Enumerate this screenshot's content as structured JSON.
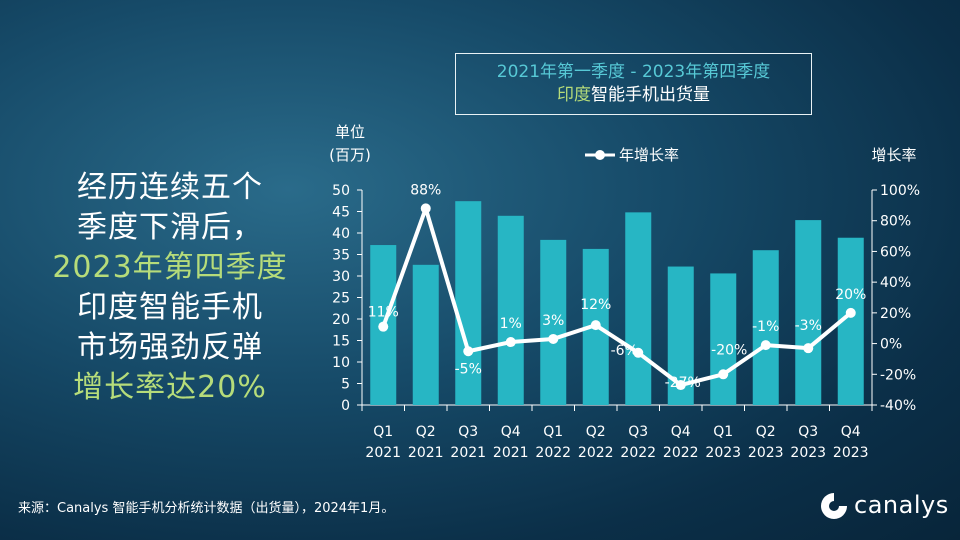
{
  "headline": {
    "line1": "经历连续五个",
    "line2": "季度下滑后，",
    "line3": "2023年第四季度",
    "line4": "印度智能手机",
    "line5": "市场强劲反弹",
    "line6": "增长率达20%"
  },
  "title_box": {
    "line1": "2021年第一季度 - 2023年第四季度",
    "line2_highlight": "印度",
    "line2_rest": "智能手机出货量"
  },
  "source_note": "来源：Canalys 智能手机分析统计数据（出货量），2024年1月。",
  "logo": {
    "brand": "canalys",
    "icon": "canalys-logo-icon"
  },
  "colors": {
    "bar": "#27b6c4",
    "line": "#ffffff",
    "accent_green": "#b6dc7a",
    "title_cyan": "#57c9d6"
  },
  "chart_data": {
    "type": "bar",
    "combo": "bar+line",
    "left_axis_label_line1": "单位",
    "left_axis_label_line2": "(百万)",
    "right_axis_label": "增长率",
    "legend": "年增长率",
    "categories": [
      "Q1 2021",
      "Q2 2021",
      "Q3 2021",
      "Q4 2021",
      "Q1 2022",
      "Q2 2022",
      "Q3 2022",
      "Q4 2022",
      "Q1 2023",
      "Q2 2023",
      "Q3 2023",
      "Q4 2023"
    ],
    "category_quarters": [
      "Q1",
      "Q2",
      "Q3",
      "Q4",
      "Q1",
      "Q2",
      "Q3",
      "Q4",
      "Q1",
      "Q2",
      "Q3",
      "Q4"
    ],
    "category_years": [
      "2021",
      "2021",
      "2021",
      "2021",
      "2022",
      "2022",
      "2022",
      "2022",
      "2023",
      "2023",
      "2023",
      "2023"
    ],
    "y_left": {
      "min": 0,
      "max": 50,
      "ticks": [
        "0",
        "5",
        "10",
        "15",
        "20",
        "25",
        "30",
        "35",
        "40",
        "45",
        "50"
      ]
    },
    "y_right": {
      "min": -40,
      "max": 100,
      "ticks": [
        "-40%",
        "-20%",
        "0%",
        "20%",
        "40%",
        "60%",
        "80%",
        "100%"
      ]
    },
    "series": [
      {
        "values": [
          37.2,
          32.6,
          47.4,
          44.0,
          38.4,
          36.3,
          44.8,
          32.2,
          30.6,
          36.0,
          43.0,
          38.9
        ]
      },
      {
        "name": "年增长率",
        "values": [
          11,
          88,
          -5,
          1,
          3,
          12,
          -6,
          -27,
          -20,
          -1,
          -3,
          20
        ],
        "labels": [
          "11%",
          "88%",
          "-5%",
          "1%",
          "3%",
          "12%",
          "-6%",
          "-27%",
          "-20%",
          "-1%",
          "-3%",
          "20%"
        ]
      }
    ]
  }
}
